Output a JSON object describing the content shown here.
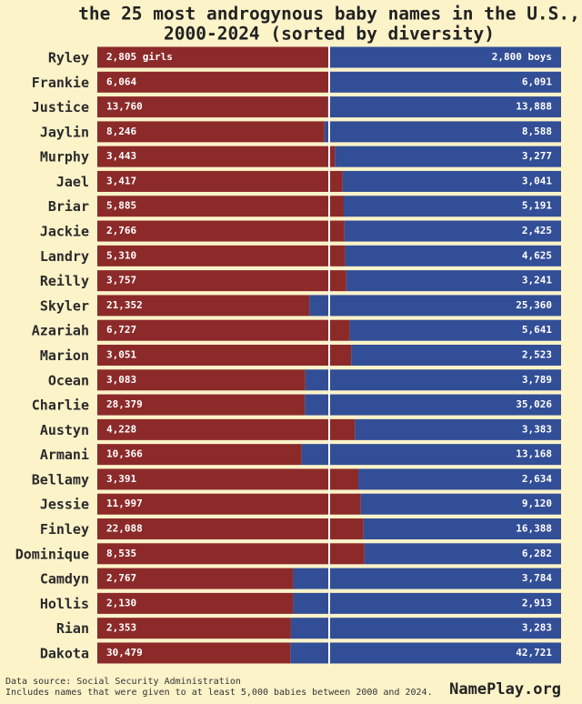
{
  "chart_data": {
    "type": "bar",
    "orientation": "horizontal",
    "stacking": "percent",
    "title": [
      "the 25 most androgynous baby names in the U.S.,",
      "2000-2024 (sorted by diversity)"
    ],
    "categories": [
      "Ryley",
      "Frankie",
      "Justice",
      "Jaylin",
      "Murphy",
      "Jael",
      "Briar",
      "Jackie",
      "Landry",
      "Reilly",
      "Skyler",
      "Azariah",
      "Marion",
      "Ocean",
      "Charlie",
      "Austyn",
      "Armani",
      "Bellamy",
      "Jessie",
      "Finley",
      "Dominique",
      "Camdyn",
      "Hollis",
      "Rian",
      "Dakota"
    ],
    "series": [
      {
        "color": "#8c2a2a",
        "values": [
          2805,
          6064,
          13760,
          8246,
          3443,
          3417,
          5885,
          2766,
          5310,
          3757,
          21352,
          6727,
          3051,
          3083,
          28379,
          4228,
          10366,
          3391,
          11997,
          22088,
          8535,
          2767,
          2130,
          2353,
          30479
        ],
        "value_labels": [
          "2,805 girls",
          "6,064",
          "13,760",
          "8,246",
          "3,443",
          "3,417",
          "5,885",
          "2,766",
          "5,310",
          "3,757",
          "21,352",
          "6,727",
          "3,051",
          "3,083",
          "28,379",
          "4,228",
          "10,366",
          "3,391",
          "11,997",
          "22,088",
          "8,535",
          "2,767",
          "2,130",
          "2,353",
          "30,479"
        ]
      },
      {
        "color": "#324e96",
        "values": [
          2800,
          6091,
          13888,
          8588,
          3277,
          3041,
          5191,
          2425,
          4625,
          3241,
          25360,
          5641,
          2523,
          3789,
          35026,
          3383,
          13168,
          2634,
          9120,
          16388,
          6282,
          3784,
          2913,
          3283,
          42721
        ],
        "value_labels": [
          "2,800 boys",
          "6,091",
          "13,888",
          "8,588",
          "3,277",
          "3,041",
          "5,191",
          "2,425",
          "4,625",
          "3,241",
          "25,360",
          "5,641",
          "2,523",
          "3,789",
          "35,026",
          "3,383",
          "13,168",
          "2,634",
          "9,120",
          "16,388",
          "6,282",
          "3,784",
          "2,913",
          "3,283",
          "42,721"
        ]
      }
    ],
    "source": "Data source: Social Security Administration",
    "note": "Includes names that were given to at least 5,000 babies between 2000 and 2024.",
    "brand": "NamePlay.org"
  }
}
